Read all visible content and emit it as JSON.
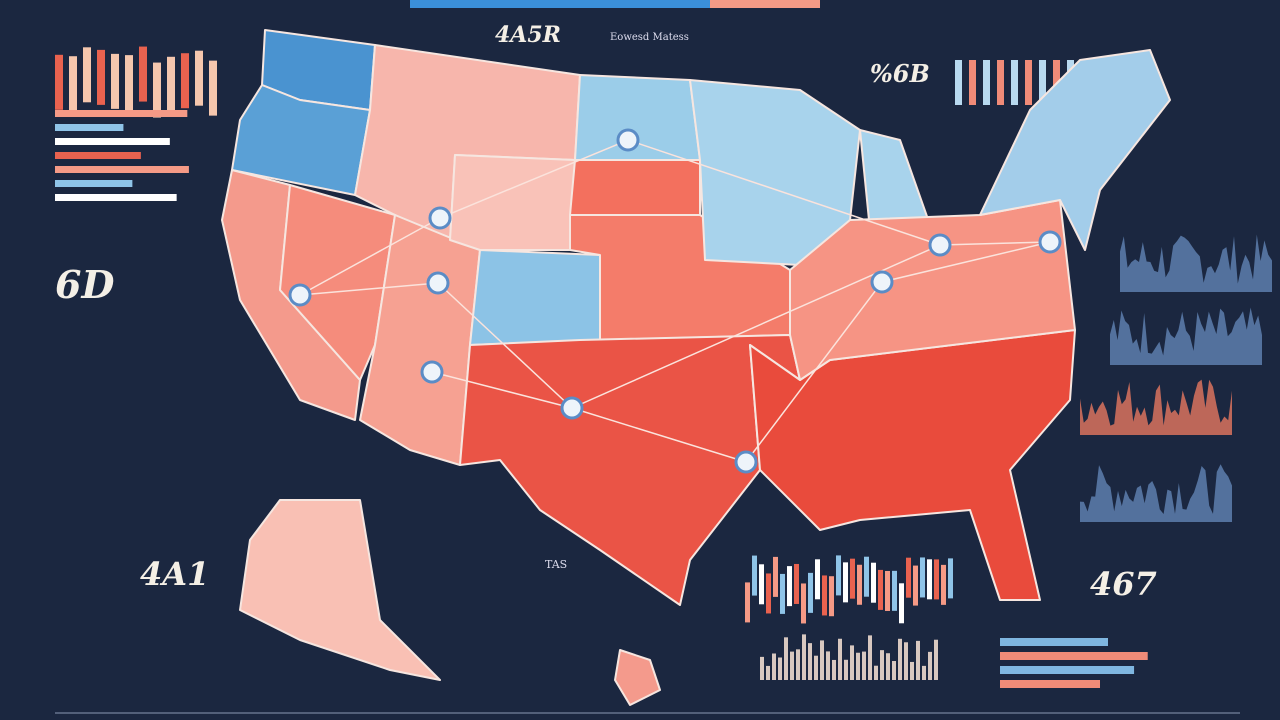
{
  "header": {
    "title": "4A5R",
    "subtitle": "Eowesd Matess"
  },
  "labels": {
    "top_left": "6D",
    "top_right": "%6B",
    "bottom_left": "4A1",
    "bottom_right": "467",
    "bottom_center": "TAS"
  }
}
